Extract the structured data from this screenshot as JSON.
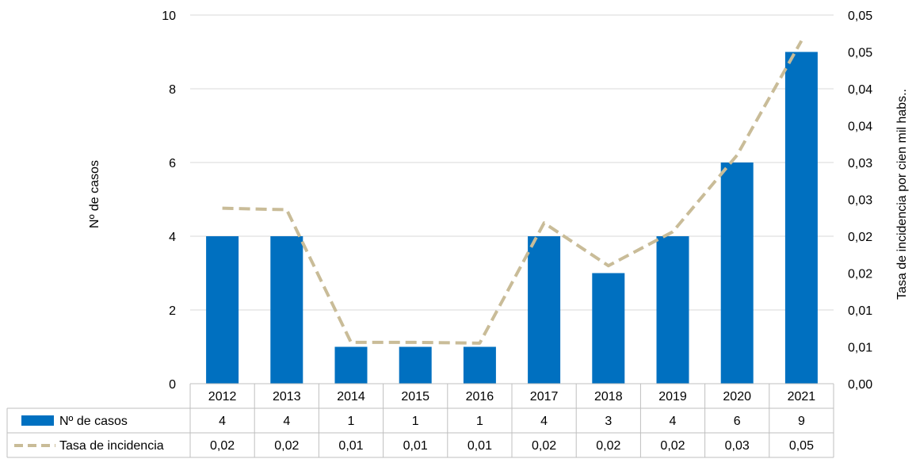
{
  "chart_data": {
    "type": "bar",
    "categories": [
      "2012",
      "2013",
      "2014",
      "2015",
      "2016",
      "2017",
      "2018",
      "2019",
      "2020",
      "2021"
    ],
    "series": [
      {
        "name": "Nº de casos",
        "type": "bar",
        "axis": "left",
        "color": "#0070C0",
        "values": [
          4,
          4,
          1,
          1,
          1,
          4,
          3,
          4,
          6,
          9
        ]
      },
      {
        "name": "Tasa de incidencia",
        "type": "line",
        "axis": "right",
        "style": "dashed",
        "color": "#C9BC98",
        "values": [
          0.0238,
          0.0236,
          0.0056,
          0.0056,
          0.0055,
          0.0218,
          0.016,
          0.0206,
          0.031,
          0.0465
        ]
      }
    ],
    "table_rows": [
      {
        "label": "Nº de casos",
        "values": [
          "4",
          "4",
          "1",
          "1",
          "1",
          "4",
          "3",
          "4",
          "6",
          "9"
        ]
      },
      {
        "label": "Tasa de incidencia",
        "values": [
          "0,02",
          "0,02",
          "0,01",
          "0,01",
          "0,01",
          "0,02",
          "0,02",
          "0,02",
          "0,03",
          "0,05"
        ]
      }
    ],
    "ylabel": "Nº de casos",
    "y2label": "Tasa de incidencia por cien mil habs..",
    "ylim": [
      0,
      10
    ],
    "y_ticks": [
      "0",
      "2",
      "4",
      "6",
      "8",
      "10"
    ],
    "y2lim": [
      0,
      0.05
    ],
    "y2_ticks": [
      "0,00",
      "0,01",
      "0,01",
      "0,02",
      "0,02",
      "0,03",
      "0,03",
      "0,04",
      "0,04",
      "0,05",
      "0,05"
    ],
    "grid": true,
    "legend": "data table"
  }
}
